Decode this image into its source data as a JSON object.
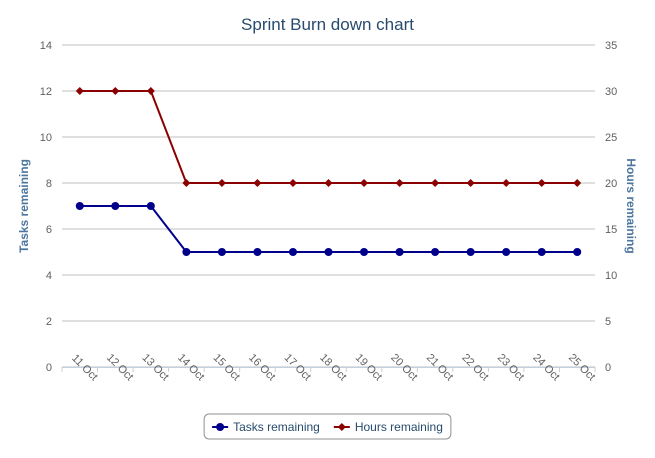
{
  "chart_data": {
    "type": "line",
    "title": "Sprint Burn down chart",
    "categories": [
      "11 Oct",
      "12 Oct",
      "13 Oct",
      "14 Oct",
      "15 Oct",
      "16 Oct",
      "17 Oct",
      "18 Oct",
      "19 Oct",
      "20 Oct",
      "21 Oct",
      "22 Oct",
      "23 Oct",
      "24 Oct",
      "25 Oct"
    ],
    "y_left": {
      "label": "Tasks remaining",
      "range": [
        0,
        14
      ],
      "ticks": [
        0,
        2,
        4,
        6,
        8,
        10,
        12,
        14
      ]
    },
    "y_right": {
      "label": "Hours remaining",
      "range": [
        0,
        35
      ],
      "ticks": [
        0,
        5,
        10,
        15,
        20,
        25,
        30,
        35
      ]
    },
    "series": [
      {
        "name": "Tasks remaining",
        "axis": "left",
        "color": "#00008b",
        "marker": "circle",
        "values": [
          7,
          7,
          7,
          5,
          5,
          5,
          5,
          5,
          5,
          5,
          5,
          5,
          5,
          5,
          5
        ]
      },
      {
        "name": "Hours remaining",
        "axis": "right",
        "color": "#8b0000",
        "marker": "diamond",
        "values": [
          30,
          30,
          30,
          20,
          20,
          20,
          20,
          20,
          20,
          20,
          20,
          20,
          20,
          20,
          20
        ]
      }
    ],
    "grid": true,
    "legend": "bottom-center"
  }
}
